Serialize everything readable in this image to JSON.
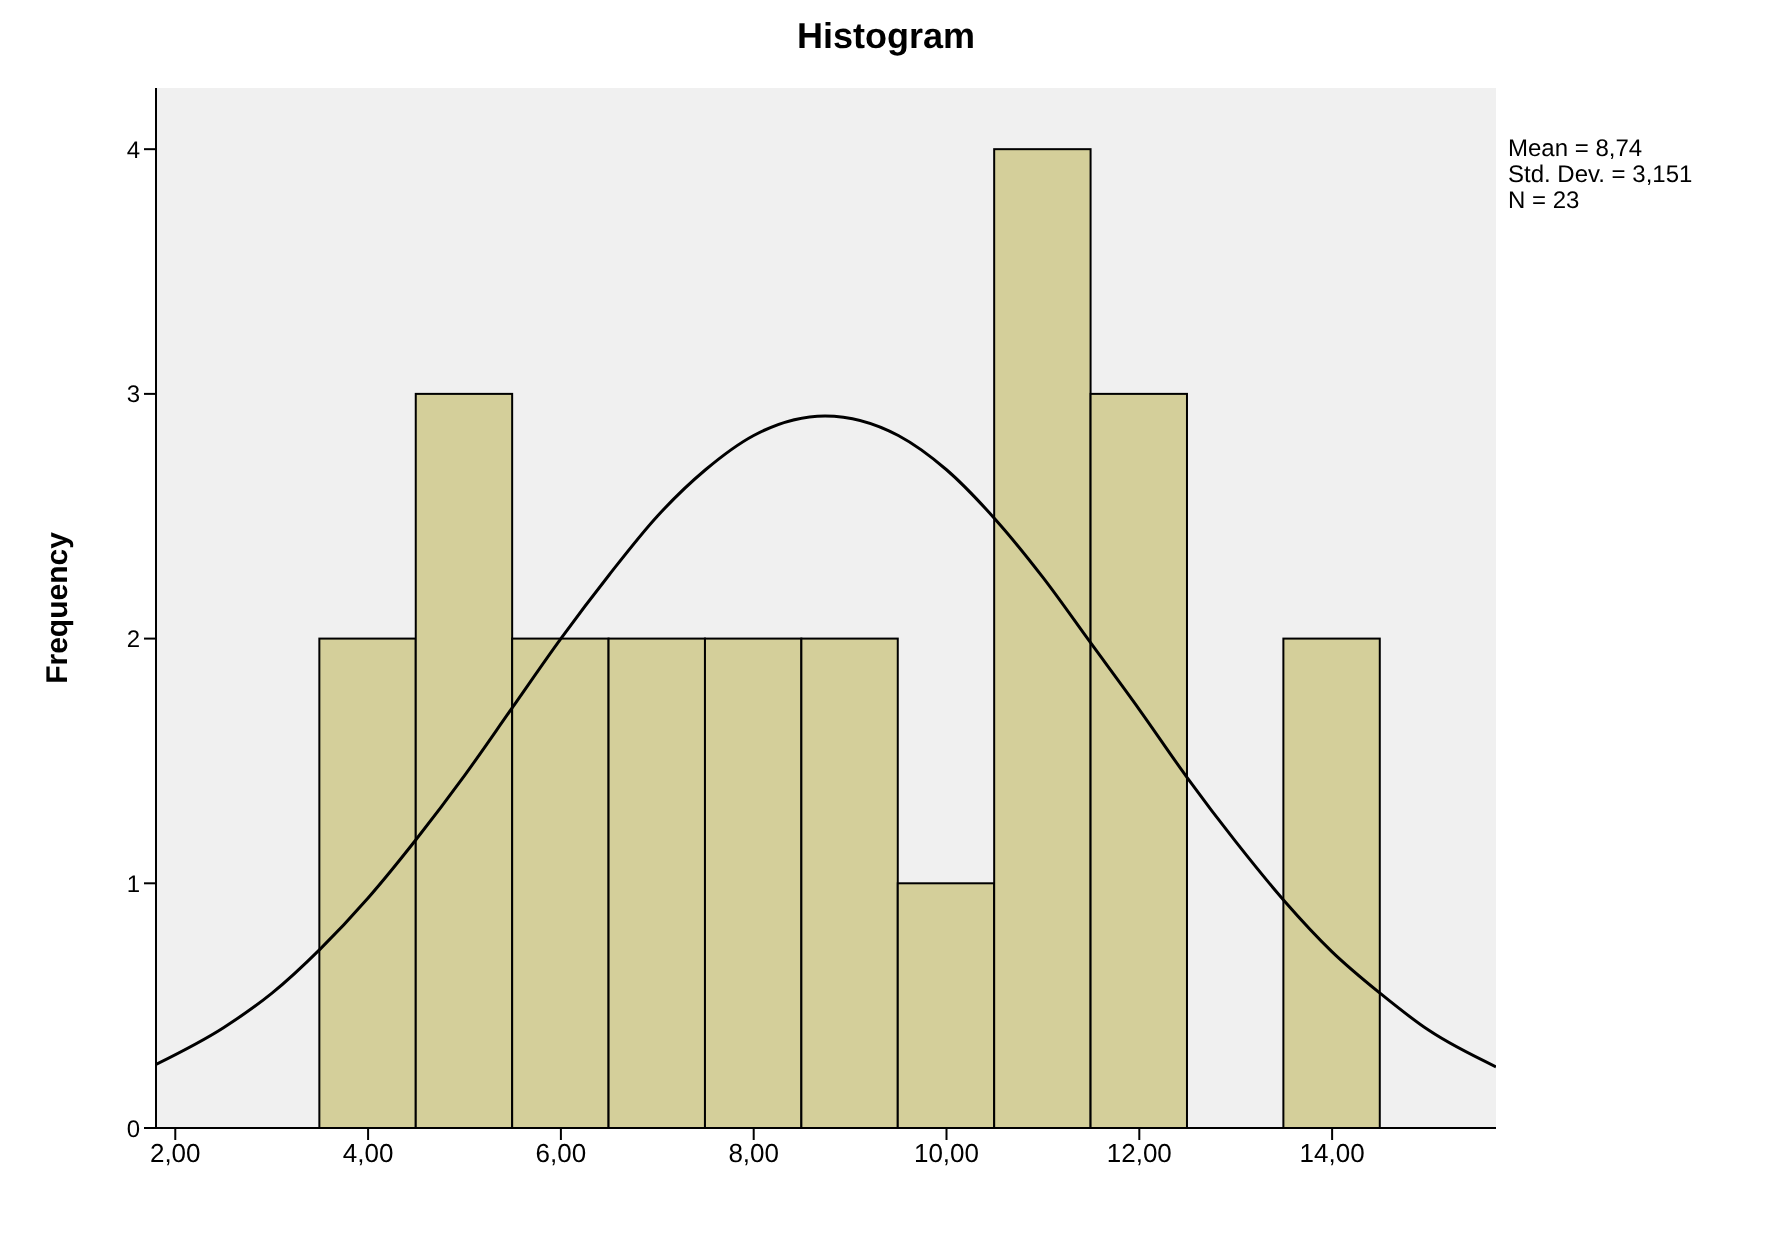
{
  "chart_data": {
    "type": "histogram",
    "title": "Histogram",
    "ylabel": "Frequency",
    "bins": [
      3.5,
      4.5,
      5.5,
      6.5,
      7.5,
      8.5,
      9.5,
      10.5,
      11.5,
      12.5,
      13.5,
      14.5
    ],
    "values": [
      2,
      3,
      2,
      2,
      2,
      2,
      1,
      4,
      3,
      0,
      2
    ],
    "color": "#d4cf9a",
    "series": [
      {
        "type": "line",
        "color": "#000000",
        "x": [
          1.8,
          2.5,
          3,
          3.5,
          4,
          4.5,
          5,
          5.5,
          6,
          6.5,
          7,
          7.5,
          8,
          8.74,
          9.5,
          10,
          10.5,
          11,
          11.5,
          12,
          12.5,
          13,
          13.5,
          14,
          14.5,
          15,
          15.7
        ],
        "values": [
          0.26,
          0.41,
          0.55,
          0.73,
          0.94,
          1.18,
          1.44,
          1.72,
          2.0,
          2.26,
          2.5,
          2.69,
          2.83,
          2.91,
          2.83,
          2.69,
          2.49,
          2.25,
          1.98,
          1.71,
          1.43,
          1.17,
          0.93,
          0.72,
          0.55,
          0.4,
          0.25
        ]
      }
    ],
    "xlim": [
      1.8,
      15.7
    ],
    "xticks": [
      {
        "value": 2,
        "label": "2,00"
      },
      {
        "value": 4,
        "label": "4,00"
      },
      {
        "value": 6,
        "label": "6,00"
      },
      {
        "value": 8,
        "label": "8,00"
      },
      {
        "value": 10,
        "label": "10,00"
      },
      {
        "value": 12,
        "label": "12,00"
      },
      {
        "value": 14,
        "label": "14,00"
      }
    ],
    "ylim": [
      0,
      4.25
    ],
    "yticks": [
      0,
      1,
      2,
      3,
      4
    ],
    "annotations": [
      "Mean = 8,74",
      "Std. Dev. = 3,151",
      "N = 23"
    ]
  }
}
